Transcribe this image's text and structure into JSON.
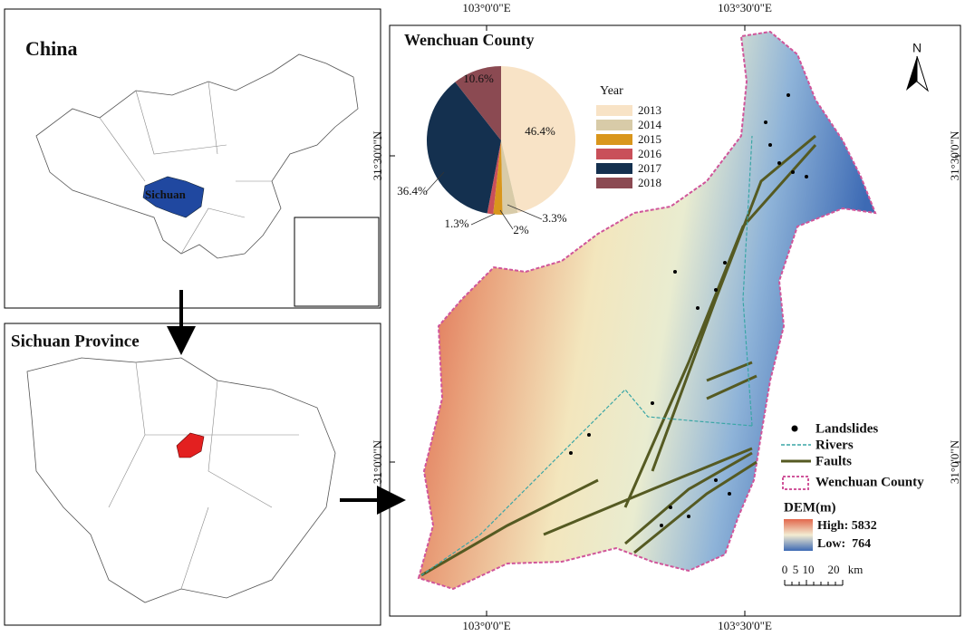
{
  "china_panel": {
    "title": "China",
    "region_label": "Sichuan"
  },
  "province_panel": {
    "title": "Sichuan Province"
  },
  "main_map": {
    "title": "Wenchuan County",
    "north": "N",
    "top_labels": [
      "103°0'0\"E",
      "103°30'0\"E"
    ],
    "bottom_labels": [
      "103°0'0\"E",
      "103°30'0\"E"
    ],
    "left_labels": [
      "31°30'0\"N",
      "31°0'0\"N"
    ],
    "right_labels": [
      "31°30'0\"N",
      "31°0'0\"N"
    ]
  },
  "legend": {
    "landslides": "Landslides",
    "rivers": "Rivers",
    "faults": "Faults",
    "county": "Wenchuan County",
    "dem_title": "DEM(m)",
    "dem_high": "High: 5832",
    "dem_low": "Low:  764",
    "scale_labels": [
      "0",
      "5",
      "10",
      "20",
      "km"
    ]
  },
  "chart_data": {
    "type": "pie",
    "legend_title": "Year",
    "categories": [
      "2013",
      "2014",
      "2015",
      "2016",
      "2017",
      "2018"
    ],
    "values": [
      46.4,
      3.3,
      2,
      1.3,
      36.4,
      10.6
    ],
    "value_labels": [
      "46.4%",
      "3.3%",
      "2%",
      "1.3%",
      "36.4%",
      "10.6%"
    ],
    "colors": [
      "#f8e3c6",
      "#d8cba8",
      "#d9961c",
      "#c9505a",
      "#14304f",
      "#8b4a52"
    ]
  }
}
